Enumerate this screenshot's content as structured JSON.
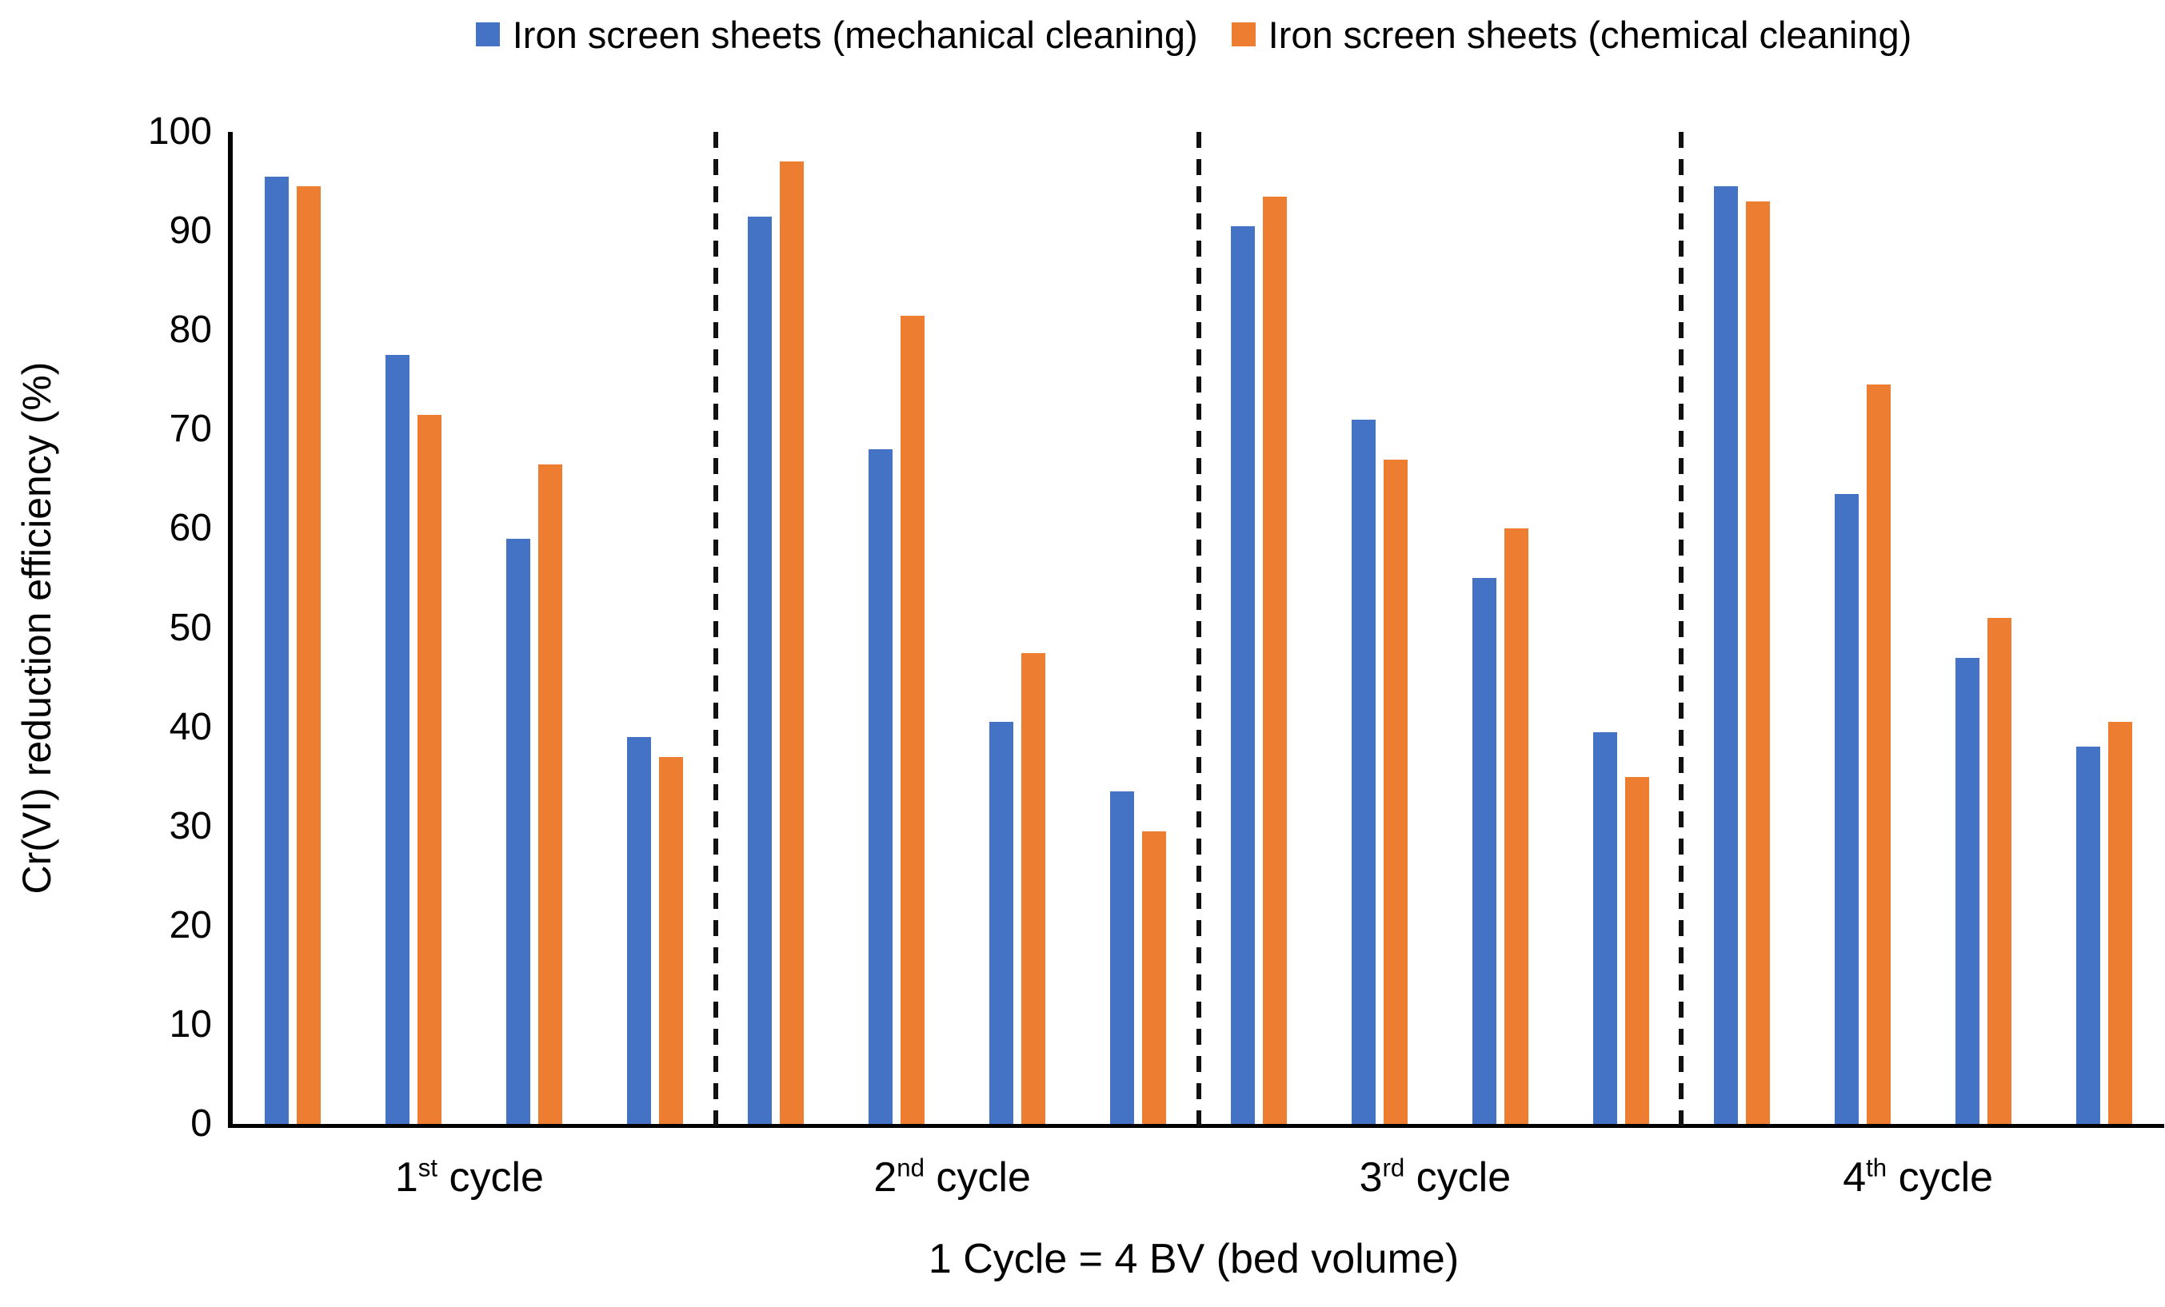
{
  "legend": {
    "items": [
      {
        "label": "Iron screen sheets (mechanical cleaning)",
        "color": "#4472C4"
      },
      {
        "label": "Iron screen sheets (chemical cleaning)",
        "color": "#ED7D31"
      }
    ]
  },
  "axes": {
    "y_title": "Cr(VI) reduction efficiency (%)",
    "x_title": "1 Cycle = 4 BV (bed volume)"
  },
  "colors": {
    "mechanical_blue": "#4472C4",
    "chemical_orange": "#ED7D31",
    "axis_line": "#000000"
  },
  "chart_data": {
    "type": "bar",
    "title": "",
    "xlabel": "1 Cycle = 4 BV (bed volume)",
    "ylabel": "Cr(VI) reduction efficiency (%)",
    "ylim": [
      0,
      100
    ],
    "yticks": [
      0,
      10,
      20,
      30,
      40,
      50,
      60,
      70,
      80,
      90,
      100
    ],
    "grid": false,
    "legend_position": "top",
    "group_separators": "dashed vertical lines between cycle groups",
    "categories": [
      "1st cycle",
      "2nd cycle",
      "3rd cycle",
      "4th cycle"
    ],
    "category_label_parts": [
      {
        "base": "1",
        "sup": "st",
        "rest": " cycle"
      },
      {
        "base": "2",
        "sup": "nd",
        "rest": " cycle"
      },
      {
        "base": "3",
        "sup": "rd",
        "rest": " cycle"
      },
      {
        "base": "4",
        "sup": "th",
        "rest": " cycle"
      }
    ],
    "bars_per_category": 4,
    "series": [
      {
        "name": "Iron screen sheets (mechanical cleaning)",
        "color": "#4472C4",
        "values": [
          [
            95.5,
            77.5,
            59,
            39
          ],
          [
            91.5,
            68,
            40.5,
            33.5
          ],
          [
            90.5,
            71,
            55,
            39.5
          ],
          [
            94.5,
            63.5,
            47,
            38
          ]
        ]
      },
      {
        "name": "Iron screen sheets (chemical cleaning)",
        "color": "#ED7D31",
        "values": [
          [
            94.5,
            71.5,
            66.5,
            37
          ],
          [
            97,
            81.5,
            47.5,
            29.5
          ],
          [
            93.5,
            67,
            60,
            35
          ],
          [
            93,
            74.5,
            51,
            40.5
          ]
        ]
      }
    ]
  }
}
